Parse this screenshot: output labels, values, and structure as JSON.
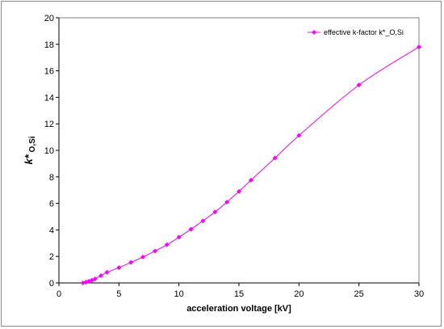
{
  "chart_data": {
    "type": "line",
    "xlabel": "acceleration voltage [kV]",
    "ylabel_main": "k*",
    "ylabel_sub": " O,Si",
    "xlim": [
      0,
      30
    ],
    "ylim": [
      0,
      20
    ],
    "xticks": [
      0,
      5,
      10,
      15,
      20,
      25,
      30
    ],
    "yticks": [
      0,
      2,
      4,
      6,
      8,
      10,
      12,
      14,
      16,
      18,
      20
    ],
    "grid": false,
    "legend_position": "top-right",
    "series": [
      {
        "name": "effective k-factor k*_O,Si",
        "color": "#ff00ff",
        "marker": "diamond",
        "x": [
          2,
          2.25,
          2.5,
          2.75,
          3,
          3.5,
          4,
          5,
          6,
          7,
          8,
          9,
          10,
          11,
          12,
          13,
          14,
          15,
          16,
          18,
          20,
          25,
          30
        ],
        "y": [
          0.0,
          0.05,
          0.12,
          0.2,
          0.3,
          0.55,
          0.8,
          1.15,
          1.55,
          1.95,
          2.4,
          2.88,
          3.45,
          4.05,
          4.68,
          5.35,
          6.1,
          6.9,
          7.75,
          9.42,
          11.12,
          14.93,
          17.8
        ]
      }
    ]
  }
}
